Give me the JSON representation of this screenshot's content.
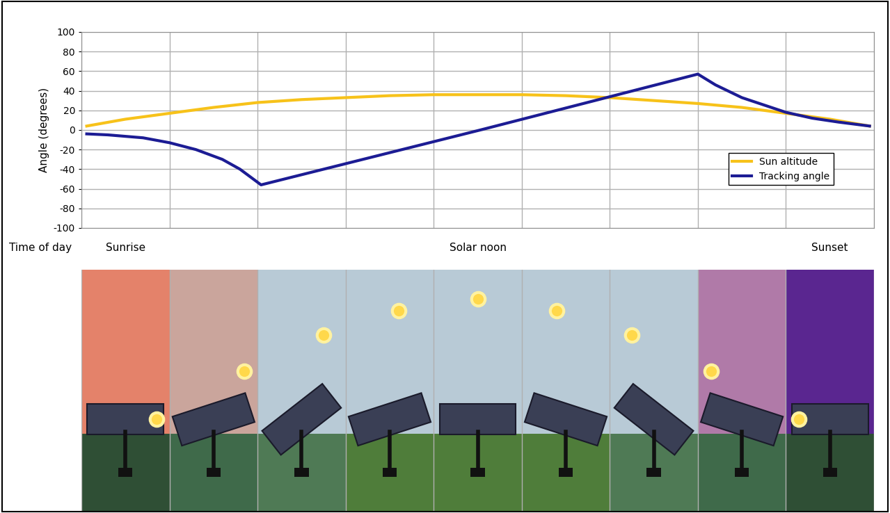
{
  "chart_data": {
    "type": "line",
    "xlabel": "Time of day",
    "ylabel": "Angle (degrees)",
    "xlim": [
      -0.5,
      8.5
    ],
    "xticks": [
      {
        "value": 0,
        "label": "Sunrise"
      },
      {
        "value": 4,
        "label": "Solar noon"
      },
      {
        "value": 8,
        "label": "Sunset"
      }
    ],
    "ylim": [
      -100,
      100
    ],
    "yticks": [
      -100,
      -80,
      -60,
      -40,
      -20,
      0,
      20,
      40,
      60,
      80,
      100
    ],
    "grid": true,
    "legend": "center right",
    "series": [
      {
        "name": "Sun altitude",
        "color": "#f7c21a",
        "x": [
          -0.44,
          0,
          0.5,
          1,
          1.5,
          2,
          2.5,
          3,
          3.5,
          4,
          4.5,
          5,
          5.5,
          6,
          6.5,
          7,
          7.5,
          8,
          8.45
        ],
        "values": [
          4,
          11,
          17,
          23,
          28,
          31,
          33,
          35,
          36,
          36,
          36,
          35,
          33,
          30,
          27,
          23,
          17,
          11,
          4
        ]
      },
      {
        "name": "Tracking angle",
        "color": "#1c1c94",
        "x": [
          -0.44,
          -0.2,
          0.2,
          0.5,
          0.8,
          1.1,
          1.3,
          1.54,
          4.03,
          6.5,
          6.7,
          7.0,
          7.3,
          7.5,
          7.8,
          8.1,
          8.45
        ],
        "values": [
          -4,
          -5,
          -8,
          -13,
          -20,
          -30,
          -40,
          -56,
          0,
          57,
          46,
          33,
          24,
          18,
          12,
          8,
          4
        ]
      }
    ]
  }
}
